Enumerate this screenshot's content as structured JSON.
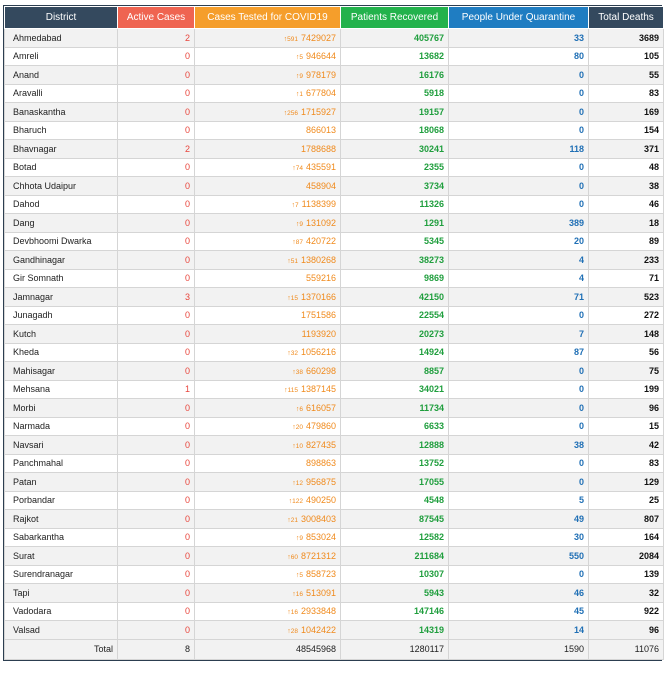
{
  "headers": {
    "district": "District",
    "active": "Active Cases",
    "tested": "Cases Tested for COVID19",
    "recovered": "Patients Recovered",
    "quarantine": "People Under Quarantine",
    "deaths": "Total Deaths"
  },
  "colors": {
    "active": "#ef6451",
    "tested": "#f59e2b",
    "recovered": "#23b24c",
    "quarantine": "#1f7dc2",
    "dark": "#34495e"
  },
  "rows": [
    {
      "district": "Ahmedabad",
      "active": "2",
      "delta": "591",
      "tested": "7429027",
      "recovered": "405767",
      "quarantine": "33",
      "deaths": "3689"
    },
    {
      "district": "Amreli",
      "active": "0",
      "delta": "5",
      "tested": "946644",
      "recovered": "13682",
      "quarantine": "80",
      "deaths": "105"
    },
    {
      "district": "Anand",
      "active": "0",
      "delta": "9",
      "tested": "978179",
      "recovered": "16176",
      "quarantine": "0",
      "deaths": "55"
    },
    {
      "district": "Aravalli",
      "active": "0",
      "delta": "1",
      "tested": "677804",
      "recovered": "5918",
      "quarantine": "0",
      "deaths": "83"
    },
    {
      "district": "Banaskantha",
      "active": "0",
      "delta": "256",
      "tested": "1715927",
      "recovered": "19157",
      "quarantine": "0",
      "deaths": "169"
    },
    {
      "district": "Bharuch",
      "active": "0",
      "delta": "",
      "tested": "866013",
      "recovered": "18068",
      "quarantine": "0",
      "deaths": "154"
    },
    {
      "district": "Bhavnagar",
      "active": "2",
      "delta": "",
      "tested": "1788688",
      "recovered": "30241",
      "quarantine": "118",
      "deaths": "371"
    },
    {
      "district": "Botad",
      "active": "0",
      "delta": "74",
      "tested": "435591",
      "recovered": "2355",
      "quarantine": "0",
      "deaths": "48"
    },
    {
      "district": "Chhota Udaipur",
      "active": "0",
      "delta": "",
      "tested": "458904",
      "recovered": "3734",
      "quarantine": "0",
      "deaths": "38"
    },
    {
      "district": "Dahod",
      "active": "0",
      "delta": "7",
      "tested": "1138399",
      "recovered": "11326",
      "quarantine": "0",
      "deaths": "46"
    },
    {
      "district": "Dang",
      "active": "0",
      "delta": "9",
      "tested": "131092",
      "recovered": "1291",
      "quarantine": "389",
      "deaths": "18"
    },
    {
      "district": "Devbhoomi Dwarka",
      "active": "0",
      "delta": "87",
      "tested": "420722",
      "recovered": "5345",
      "quarantine": "20",
      "deaths": "89"
    },
    {
      "district": "Gandhinagar",
      "active": "0",
      "delta": "51",
      "tested": "1380268",
      "recovered": "38273",
      "quarantine": "4",
      "deaths": "233"
    },
    {
      "district": "Gir Somnath",
      "active": "0",
      "delta": "",
      "tested": "559216",
      "recovered": "9869",
      "quarantine": "4",
      "deaths": "71"
    },
    {
      "district": "Jamnagar",
      "active": "3",
      "delta": "15",
      "tested": "1370166",
      "recovered": "42150",
      "quarantine": "71",
      "deaths": "523"
    },
    {
      "district": "Junagadh",
      "active": "0",
      "delta": "",
      "tested": "1751586",
      "recovered": "22554",
      "quarantine": "0",
      "deaths": "272"
    },
    {
      "district": "Kutch",
      "active": "0",
      "delta": "",
      "tested": "1193920",
      "recovered": "20273",
      "quarantine": "7",
      "deaths": "148"
    },
    {
      "district": "Kheda",
      "active": "0",
      "delta": "32",
      "tested": "1056216",
      "recovered": "14924",
      "quarantine": "87",
      "deaths": "56"
    },
    {
      "district": "Mahisagar",
      "active": "0",
      "delta": "38",
      "tested": "660298",
      "recovered": "8857",
      "quarantine": "0",
      "deaths": "75"
    },
    {
      "district": "Mehsana",
      "active": "1",
      "delta": "115",
      "tested": "1387145",
      "recovered": "34021",
      "quarantine": "0",
      "deaths": "199"
    },
    {
      "district": "Morbi",
      "active": "0",
      "delta": "6",
      "tested": "616057",
      "recovered": "11734",
      "quarantine": "0",
      "deaths": "96"
    },
    {
      "district": "Narmada",
      "active": "0",
      "delta": "20",
      "tested": "479860",
      "recovered": "6633",
      "quarantine": "0",
      "deaths": "15"
    },
    {
      "district": "Navsari",
      "active": "0",
      "delta": "10",
      "tested": "827435",
      "recovered": "12888",
      "quarantine": "38",
      "deaths": "42"
    },
    {
      "district": "Panchmahal",
      "active": "0",
      "delta": "",
      "tested": "898863",
      "recovered": "13752",
      "quarantine": "0",
      "deaths": "83"
    },
    {
      "district": "Patan",
      "active": "0",
      "delta": "12",
      "tested": "956875",
      "recovered": "17055",
      "quarantine": "0",
      "deaths": "129"
    },
    {
      "district": "Porbandar",
      "active": "0",
      "delta": "122",
      "tested": "490250",
      "recovered": "4548",
      "quarantine": "5",
      "deaths": "25"
    },
    {
      "district": "Rajkot",
      "active": "0",
      "delta": "21",
      "tested": "3008403",
      "recovered": "87545",
      "quarantine": "49",
      "deaths": "807"
    },
    {
      "district": "Sabarkantha",
      "active": "0",
      "delta": "9",
      "tested": "853024",
      "recovered": "12582",
      "quarantine": "30",
      "deaths": "164"
    },
    {
      "district": "Surat",
      "active": "0",
      "delta": "60",
      "tested": "8721312",
      "recovered": "211684",
      "quarantine": "550",
      "deaths": "2084"
    },
    {
      "district": "Surendranagar",
      "active": "0",
      "delta": "5",
      "tested": "858723",
      "recovered": "10307",
      "quarantine": "0",
      "deaths": "139"
    },
    {
      "district": "Tapi",
      "active": "0",
      "delta": "16",
      "tested": "513091",
      "recovered": "5943",
      "quarantine": "46",
      "deaths": "32"
    },
    {
      "district": "Vadodara",
      "active": "0",
      "delta": "16",
      "tested": "2933848",
      "recovered": "147146",
      "quarantine": "45",
      "deaths": "922"
    },
    {
      "district": "Valsad",
      "active": "0",
      "delta": "28",
      "tested": "1042422",
      "recovered": "14319",
      "quarantine": "14",
      "deaths": "96"
    }
  ],
  "totals": {
    "label": "Total",
    "active": "8",
    "tested": "48545968",
    "recovered": "1280117",
    "quarantine": "1590",
    "deaths": "11076"
  }
}
